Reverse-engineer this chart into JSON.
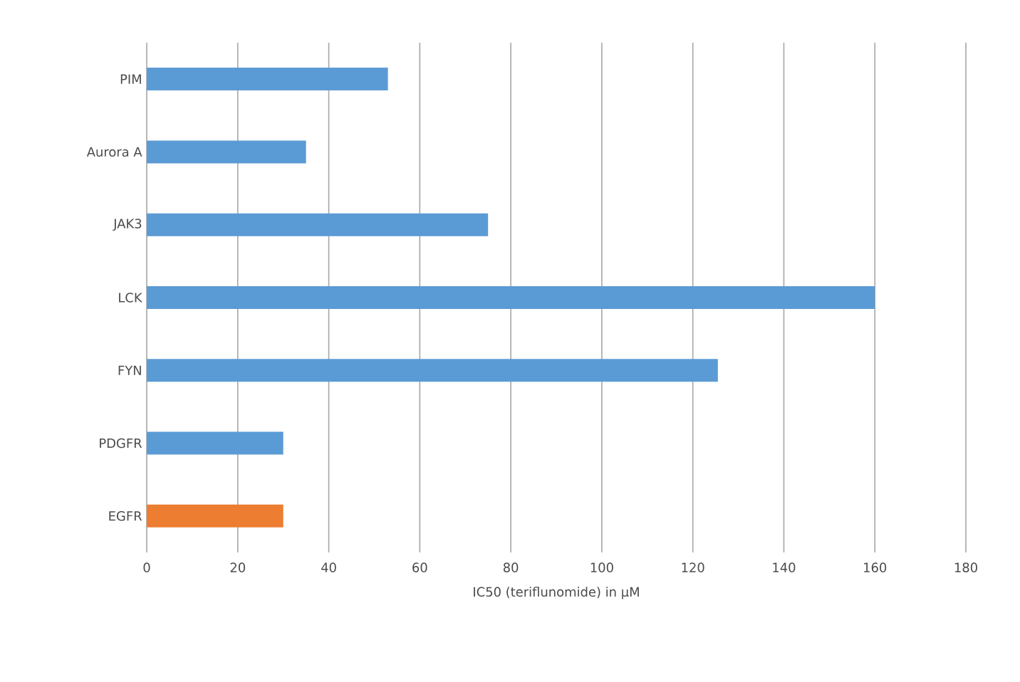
{
  "chart_data": {
    "type": "bar",
    "orientation": "horizontal",
    "categories": [
      "PIM",
      "Aurora A",
      "JAK3",
      "LCK",
      "FYN",
      "PDGFR",
      "EGFR"
    ],
    "values": [
      53,
      35,
      75,
      160,
      125.5,
      30,
      30
    ],
    "colors": [
      "#5b9bd5",
      "#5b9bd5",
      "#5b9bd5",
      "#5b9bd5",
      "#5b9bd5",
      "#5b9bd5",
      "#ed7d31"
    ],
    "xlabel": "IC50 (teriflunomide)  in µM",
    "xlim": [
      0,
      180
    ],
    "xticks": [
      0,
      20,
      40,
      60,
      80,
      100,
      120,
      140,
      160,
      180
    ],
    "grid": "x"
  }
}
